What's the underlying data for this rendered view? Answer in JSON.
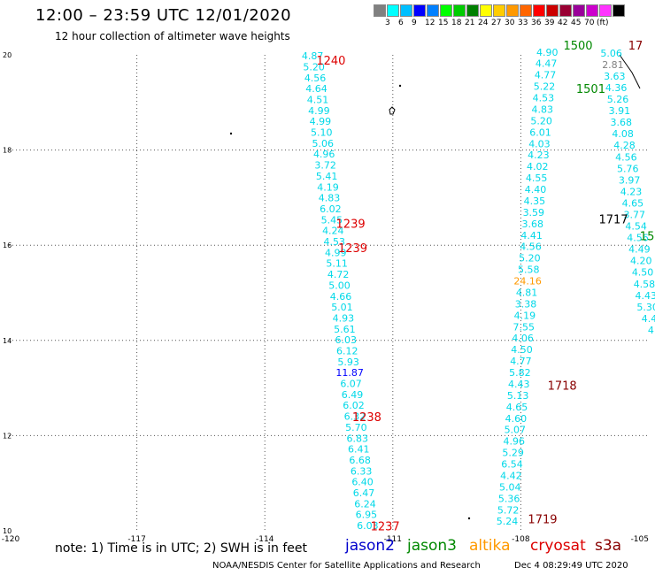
{
  "header": {
    "title": "12:00 – 23:59 UTC 12/01/2020",
    "subtitle": "12 hour collection of altimeter wave heights"
  },
  "legend": {
    "colors": [
      "#808080",
      "#00ffff",
      "#00bfff",
      "#0000ff",
      "#0080ff",
      "#00ff00",
      "#00cc00",
      "#008000",
      "#ffff00",
      "#ffcc00",
      "#ff9900",
      "#ff6600",
      "#ff0000",
      "#cc0000",
      "#990033",
      "#990099",
      "#cc00cc",
      "#ff33ff",
      "#000000"
    ],
    "labels": [
      "3",
      "6",
      "9",
      "12",
      "15",
      "18",
      "21",
      "24",
      "27",
      "30",
      "33",
      "36",
      "39",
      "42",
      "45",
      "70",
      "(ft)"
    ]
  },
  "map": {
    "lon_range": [
      -120,
      -105
    ],
    "lat_range": [
      10,
      20
    ],
    "x_ticks": [
      "-120",
      "-117",
      "-114",
      "-111",
      "-108",
      "-105"
    ],
    "y_ticks": [
      "20",
      "18",
      "16",
      "14",
      "12",
      "10"
    ],
    "track_color": "#00d8e8",
    "track_west": {
      "values": [
        "4.87",
        "5.20",
        "4.56",
        "4.64",
        "4.51",
        "4.99",
        "4.99",
        "5.10",
        "5.06",
        "4.96",
        "3.72",
        "5.41",
        "4.19",
        "4.83",
        "6.02",
        "5.45",
        "4.24",
        "4.53",
        "4.99",
        "5.11",
        "4.72",
        "5.00",
        "4.66",
        "5.01",
        "4.93",
        "5.61",
        "6.03",
        "6.12",
        "5.93",
        "11.87",
        "6.07",
        "6.49",
        "6.02",
        "6.32",
        "5.70",
        "6.83",
        "6.41",
        "6.68",
        "6.33",
        "6.40",
        "6.47",
        "6.24",
        "6.95",
        "6.03"
      ],
      "color_overrides": {
        "29": "#0000ff"
      }
    },
    "track_east1": {
      "values": [
        "4.90",
        "4.47",
        "4.77",
        "5.22",
        "4.53",
        "4.83",
        "5.20",
        "6.01",
        "4.03",
        "4.23",
        "4.02",
        "4.55",
        "4.40",
        "4.35",
        "3.59",
        "3.68",
        "4.41",
        "4.56",
        "5.20",
        "5.58",
        "24.16",
        "4.81",
        "3.38",
        "4.19",
        "7.55",
        "4.06",
        "4.50",
        "4.77",
        "5.82",
        "4.43",
        "5.13",
        "4.65",
        "4.60",
        "5.07",
        "4.96",
        "5.29",
        "6.54",
        "4.42",
        "5.04",
        "5.36",
        "5.72",
        "5.24"
      ],
      "color_overrides": {
        "20": "#ff9900"
      }
    },
    "track_east2": {
      "values": [
        "5.06",
        "2.81",
        "3.63",
        "4.36",
        "5.26",
        "3.91",
        "3.68",
        "4.08",
        "4.28",
        "4.56",
        "5.76",
        "3.97",
        "4.23",
        "4.65",
        "3.77",
        "4.54",
        "4.56",
        "4.49",
        "4.20",
        "4.50",
        "4.58",
        "4.43",
        "5.30",
        "4.4",
        "4"
      ],
      "color_overrides": {
        "1": "#808080"
      }
    },
    "time_labels": [
      {
        "text": "1240",
        "color": "#dd0000",
        "lon": -112.45,
        "lat": 19.89
      },
      {
        "text": "1239",
        "color": "#dd0000",
        "lon": -111.99,
        "lat": 16.46
      },
      {
        "text": "1239",
        "color": "#dd0000",
        "lon": -111.94,
        "lat": 15.95
      },
      {
        "text": "1238",
        "color": "#dd0000",
        "lon": -111.61,
        "lat": 12.4
      },
      {
        "text": "1237",
        "color": "#dd0000",
        "lon": -111.18,
        "lat": 10.1
      },
      {
        "text": "1500",
        "color": "#008800",
        "lon": -106.66,
        "lat": 20.2
      },
      {
        "text": "1501",
        "color": "#008800",
        "lon": -106.36,
        "lat": 19.29
      },
      {
        "text": "1717",
        "color": "#000000",
        "lon": -105.83,
        "lat": 16.55
      },
      {
        "text": "1718",
        "color": "#880000",
        "lon": -107.03,
        "lat": 13.06
      },
      {
        "text": "1719",
        "color": "#880000",
        "lon": -107.49,
        "lat": 10.25
      },
      {
        "text": "17",
        "color": "#880000",
        "lon": -105.31,
        "lat": 20.2
      },
      {
        "text": "15",
        "color": "#008800",
        "lon": -105.04,
        "lat": 16.2
      }
    ]
  },
  "note": {
    "text": "note:  1) Time is in UTC;  2) SWH is in feet"
  },
  "satellites": [
    {
      "name": "jason2",
      "color": "#0000cc"
    },
    {
      "name": "jason3",
      "color": "#008800"
    },
    {
      "name": "altika",
      "color": "#ff9900"
    },
    {
      "name": "cryosat",
      "color": "#dd0000"
    },
    {
      "name": "s3a",
      "color": "#880000"
    }
  ],
  "footer": {
    "credit": "NOAA/NESDIS Center for Satellite Applications and Research",
    "timestamp": "Dec  4 08:29:49 UTC 2020"
  }
}
